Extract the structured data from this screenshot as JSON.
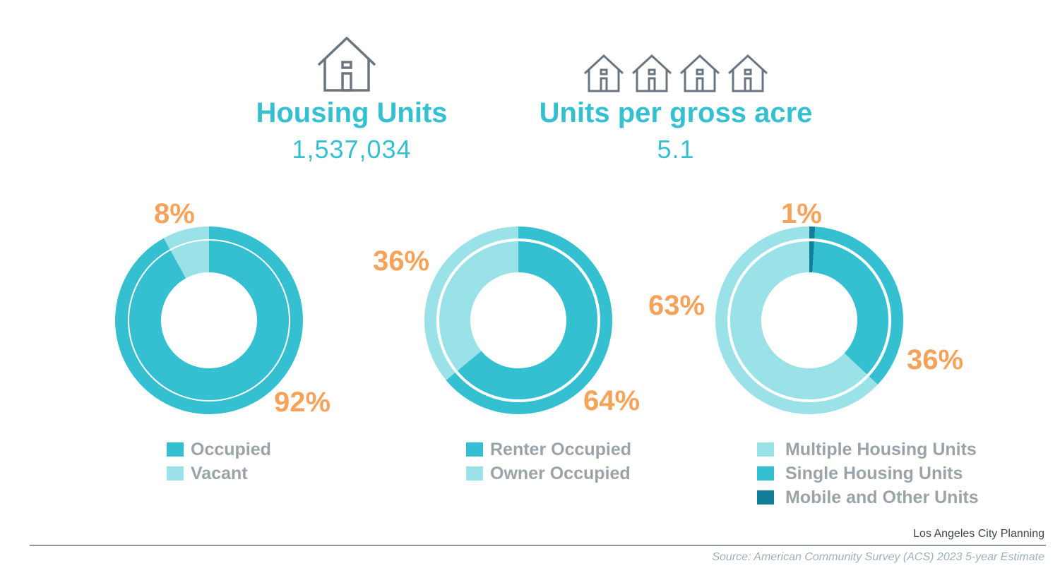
{
  "stats": [
    {
      "title": "Housing Units",
      "value": "1,537,034",
      "icon": "house-icon"
    },
    {
      "title": "Units per gross acre",
      "value": "5.1",
      "icon": "four-houses-icon"
    }
  ],
  "colors": {
    "teal": "#35c0d1",
    "light_teal": "#9ae1e8",
    "dark_teal": "#127f99",
    "orange": "#f5a35b",
    "gray_text": "#9aa3aa",
    "icon_gray": "#6b7580"
  },
  "chart_data": [
    {
      "type": "pie",
      "style": "donut",
      "slices": [
        {
          "name": "Occupied",
          "value": 92,
          "label": "92%",
          "color": "#35c0d1"
        },
        {
          "name": "Vacant",
          "value": 8,
          "label": "8%",
          "color": "#9ae1e8"
        }
      ]
    },
    {
      "type": "pie",
      "style": "donut",
      "slices": [
        {
          "name": "Renter Occupied",
          "value": 64,
          "label": "64%",
          "color": "#35c0d1"
        },
        {
          "name": "Owner Occupied",
          "value": 36,
          "label": "36%",
          "color": "#9ae1e8"
        }
      ]
    },
    {
      "type": "pie",
      "style": "donut",
      "slices": [
        {
          "name": "Mobile and Other Units",
          "value": 1,
          "label": "1%",
          "color": "#127f99"
        },
        {
          "name": "Single Housing Units",
          "value": 36,
          "label": "36%",
          "color": "#35c0d1"
        },
        {
          "name": "Multiple Housing Units",
          "value": 63,
          "label": "63%",
          "color": "#9ae1e8"
        }
      ],
      "legend_order": [
        "Multiple Housing Units",
        "Single Housing Units",
        "Mobile and Other Units"
      ]
    }
  ],
  "footer": {
    "credit": "Los Angeles City Planning",
    "source": "Source: American Community Survey (ACS) 2023 5-year Estimate"
  }
}
